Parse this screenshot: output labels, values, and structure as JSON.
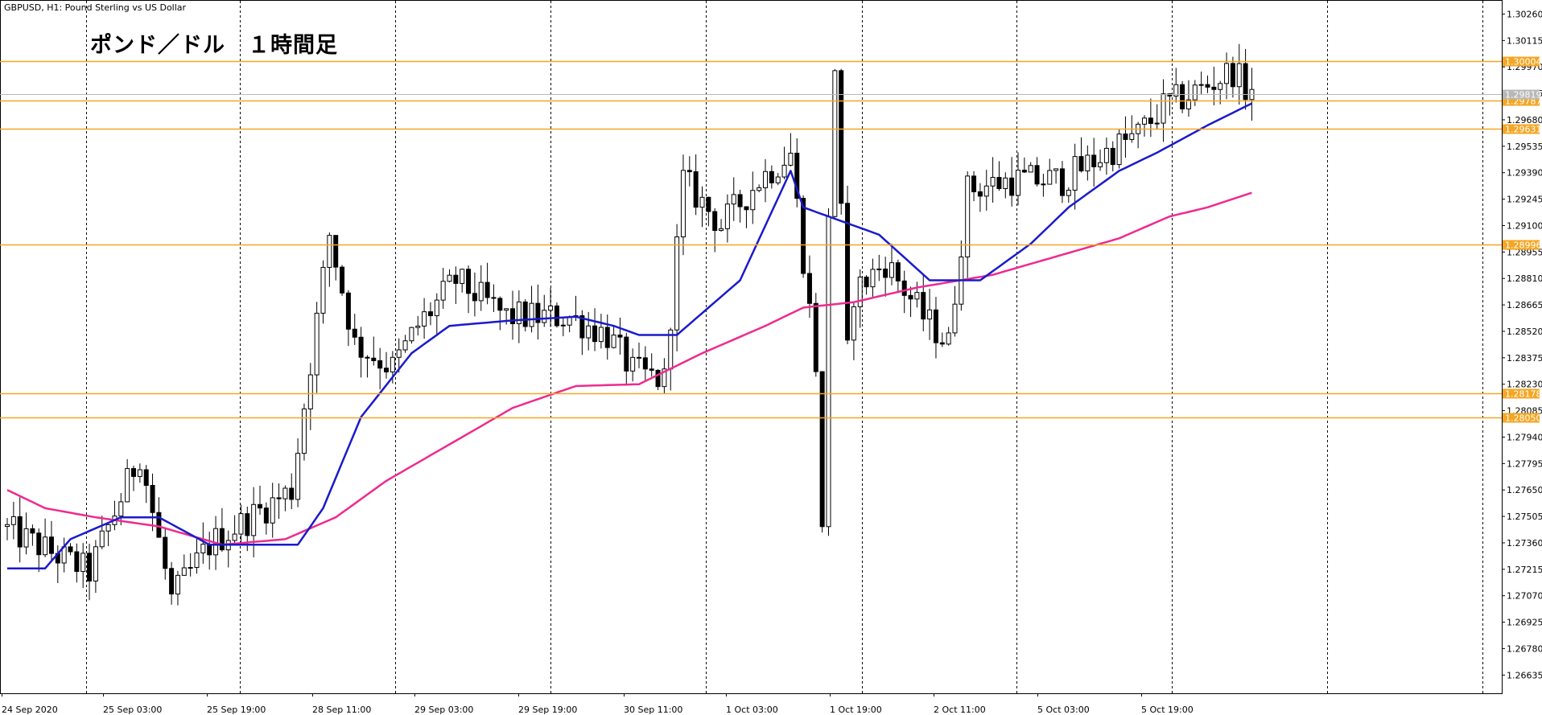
{
  "header": {
    "symbol_info": "GBPUSD, H1:  Pound Sterling vs US Dollar",
    "title": "ポンド／ドル　１時間足"
  },
  "colors": {
    "background": "#ffffff",
    "grid": "#000000",
    "bull_candle_fill": "#ffffff",
    "bear_candle_fill": "#000000",
    "candle_outline": "#000000",
    "ma_fast": "#1a1acc",
    "ma_slow": "#ee2a8f",
    "level_line": "#f5a623",
    "last_price_badge": "#b8b8b8"
  },
  "chart_data": {
    "type": "candlestick",
    "symbol": "GBPUSD",
    "timeframe": "H1",
    "grid": true,
    "y_ticks": [
      "1.30260",
      "1.30115",
      "1.29970",
      "1.29825",
      "1.29680",
      "1.29535",
      "1.29390",
      "1.29245",
      "1.29100",
      "1.28955",
      "1.28810",
      "1.28665",
      "1.28520",
      "1.28375",
      "1.28230",
      "1.28085",
      "1.27940",
      "1.27795",
      "1.27650",
      "1.27505",
      "1.27360",
      "1.27215",
      "1.27070",
      "1.26925",
      "1.26780",
      "1.26635"
    ],
    "ylim": [
      1.26535,
      1.30315
    ],
    "x_ticks": [
      "24 Sep 2020",
      "25 Sep 03:00",
      "25 Sep 19:00",
      "28 Sep 11:00",
      "29 Sep 03:00",
      "29 Sep 19:00",
      "30 Sep 11:00",
      "1 Oct 03:00",
      "1 Oct 19:00",
      "2 Oct 11:00",
      "5 Oct 03:00",
      "5 Oct 19:00"
    ],
    "horizontal_levels": [
      {
        "label": "1.30004",
        "value": 1.30004
      },
      {
        "label": "1.29787",
        "value": 1.29787
      },
      {
        "label": "1.29631",
        "value": 1.29631
      },
      {
        "label": "1.28996",
        "value": 1.28996
      },
      {
        "label": "1.28178",
        "value": 1.28178
      },
      {
        "label": "1.28050",
        "value": 1.2805
      }
    ],
    "last_price": {
      "label": "1.29819",
      "value": 1.29819
    },
    "anchors": {
      "price": [
        [
          0,
          1.2745
        ],
        [
          14,
          1.272
        ],
        [
          22,
          1.2785
        ],
        [
          27,
          1.2705
        ],
        [
          33,
          1.2735
        ],
        [
          46,
          1.2765
        ],
        [
          52,
          1.2905
        ],
        [
          56,
          1.2845
        ],
        [
          62,
          1.2832
        ],
        [
          66,
          1.2855
        ],
        [
          72,
          1.288
        ],
        [
          80,
          1.286
        ],
        [
          90,
          1.286
        ],
        [
          96,
          1.285
        ],
        [
          100,
          1.283
        ],
        [
          105,
          1.2825
        ],
        [
          108,
          1.2935
        ],
        [
          114,
          1.291
        ],
        [
          120,
          1.2935
        ],
        [
          125,
          1.295
        ],
        [
          129,
          1.2835
        ],
        [
          132,
          1.296
        ],
        [
          134,
          1.287
        ],
        [
          140,
          1.289
        ],
        [
          146,
          1.286
        ],
        [
          150,
          1.2845
        ],
        [
          153,
          1.293
        ],
        [
          160,
          1.2935
        ],
        [
          168,
          1.2935
        ],
        [
          175,
          1.295
        ],
        [
          180,
          1.296
        ],
        [
          184,
          1.2975
        ],
        [
          190,
          1.2985
        ],
        [
          195,
          1.2995
        ],
        [
          197,
          1.2985
        ]
      ],
      "ma_fast": [
        [
          0,
          1.2722
        ],
        [
          6,
          1.2722
        ],
        [
          10,
          1.2738
        ],
        [
          18,
          1.275
        ],
        [
          24,
          1.275
        ],
        [
          32,
          1.2735
        ],
        [
          40,
          1.2735
        ],
        [
          46,
          1.2735
        ],
        [
          50,
          1.2755
        ],
        [
          56,
          1.2805
        ],
        [
          64,
          1.284
        ],
        [
          70,
          1.2855
        ],
        [
          80,
          1.2858
        ],
        [
          90,
          1.286
        ],
        [
          96,
          1.2855
        ],
        [
          100,
          1.285
        ],
        [
          106,
          1.285
        ],
        [
          116,
          1.288
        ],
        [
          124,
          1.294
        ],
        [
          126,
          1.292
        ],
        [
          130,
          1.2915
        ],
        [
          138,
          1.2905
        ],
        [
          146,
          1.288
        ],
        [
          150,
          1.288
        ],
        [
          154,
          1.288
        ],
        [
          162,
          1.29
        ],
        [
          168,
          1.292
        ],
        [
          176,
          1.294
        ],
        [
          182,
          1.295
        ],
        [
          190,
          1.2965
        ],
        [
          197,
          1.2977
        ]
      ],
      "ma_slow": [
        [
          0,
          1.2765
        ],
        [
          6,
          1.2755
        ],
        [
          14,
          1.275
        ],
        [
          24,
          1.2745
        ],
        [
          34,
          1.2735
        ],
        [
          44,
          1.2738
        ],
        [
          52,
          1.275
        ],
        [
          60,
          1.277
        ],
        [
          70,
          1.279
        ],
        [
          80,
          1.281
        ],
        [
          90,
          1.2822
        ],
        [
          100,
          1.2823
        ],
        [
          110,
          1.284
        ],
        [
          120,
          1.2855
        ],
        [
          126,
          1.2865
        ],
        [
          134,
          1.2868
        ],
        [
          144,
          1.2876
        ],
        [
          156,
          1.2883
        ],
        [
          166,
          1.2893
        ],
        [
          176,
          1.2903
        ],
        [
          184,
          1.2915
        ],
        [
          190,
          1.292
        ],
        [
          197,
          1.2928
        ]
      ]
    },
    "candle_count": 198
  }
}
